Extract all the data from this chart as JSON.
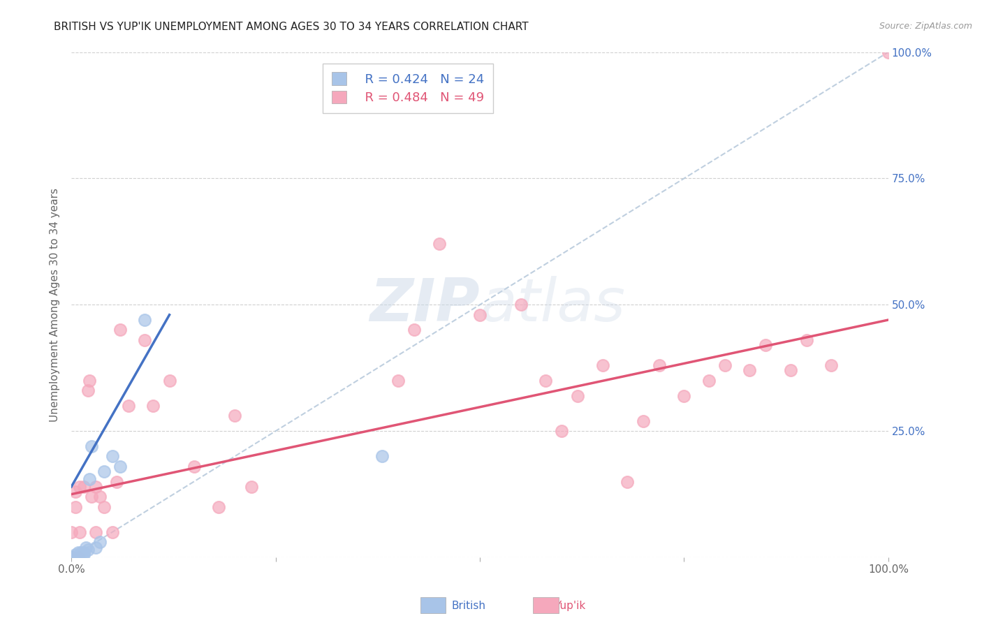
{
  "title": "BRITISH VS YUP'IK UNEMPLOYMENT AMONG AGES 30 TO 34 YEARS CORRELATION CHART",
  "source": "Source: ZipAtlas.com",
  "ylabel": "Unemployment Among Ages 30 to 34 years",
  "xlim": [
    0,
    1.0
  ],
  "ylim": [
    0,
    1.0
  ],
  "xtick_positions": [
    0.0,
    0.25,
    0.5,
    0.75,
    1.0
  ],
  "xticklabels": [
    "0.0%",
    "",
    "",
    "",
    "100.0%"
  ],
  "ytick_labels_right": [
    "100.0%",
    "75.0%",
    "50.0%",
    "25.0%",
    ""
  ],
  "ytick_positions_right": [
    1.0,
    0.75,
    0.5,
    0.25,
    0.0
  ],
  "legend_r_british": "R = 0.424",
  "legend_n_british": "N = 24",
  "legend_r_yupik": "R = 0.484",
  "legend_n_yupik": "N = 49",
  "british_color": "#a8c4e8",
  "yupik_color": "#f5a8bc",
  "trendline_british_color": "#4472c4",
  "trendline_yupik_color": "#e05575",
  "ref_line_color": "#b0c4d8",
  "watermark_color": "#ccd9e8",
  "background_color": "#ffffff",
  "grid_color": "#d0d0d0",
  "british_x": [
    0.0,
    0.0,
    0.0,
    0.0,
    0.0,
    0.005,
    0.005,
    0.008,
    0.01,
    0.01,
    0.012,
    0.015,
    0.015,
    0.018,
    0.02,
    0.022,
    0.025,
    0.03,
    0.035,
    0.04,
    0.05,
    0.06,
    0.09,
    0.38
  ],
  "british_y": [
    0.0,
    0.0,
    0.0,
    0.0,
    0.0,
    0.0,
    0.005,
    0.01,
    0.0,
    0.005,
    0.01,
    0.005,
    0.01,
    0.02,
    0.015,
    0.155,
    0.22,
    0.02,
    0.03,
    0.17,
    0.2,
    0.18,
    0.47,
    0.2
  ],
  "yupik_x": [
    0.0,
    0.0,
    0.0,
    0.0,
    0.005,
    0.005,
    0.008,
    0.01,
    0.01,
    0.015,
    0.02,
    0.022,
    0.025,
    0.03,
    0.03,
    0.035,
    0.04,
    0.05,
    0.055,
    0.06,
    0.07,
    0.09,
    0.1,
    0.12,
    0.15,
    0.18,
    0.2,
    0.22,
    0.4,
    0.42,
    0.45,
    0.5,
    0.55,
    0.58,
    0.6,
    0.62,
    0.65,
    0.68,
    0.7,
    0.72,
    0.75,
    0.78,
    0.8,
    0.83,
    0.85,
    0.88,
    0.9,
    0.93,
    1.0
  ],
  "yupik_y": [
    0.0,
    0.0,
    0.0,
    0.05,
    0.1,
    0.13,
    0.0,
    0.05,
    0.14,
    0.14,
    0.33,
    0.35,
    0.12,
    0.05,
    0.14,
    0.12,
    0.1,
    0.05,
    0.15,
    0.45,
    0.3,
    0.43,
    0.3,
    0.35,
    0.18,
    0.1,
    0.28,
    0.14,
    0.35,
    0.45,
    0.62,
    0.48,
    0.5,
    0.35,
    0.25,
    0.32,
    0.38,
    0.15,
    0.27,
    0.38,
    0.32,
    0.35,
    0.38,
    0.37,
    0.42,
    0.37,
    0.43,
    0.38,
    1.0
  ],
  "british_trend_x0": 0.0,
  "british_trend_x1": 0.12,
  "british_trend_y0": 0.14,
  "british_trend_y1": 0.48,
  "yupik_trend_x0": 0.0,
  "yupik_trend_x1": 1.0,
  "yupik_trend_y0": 0.125,
  "yupik_trend_y1": 0.47,
  "ref_line_x0": 0.0,
  "ref_line_x1": 1.0,
  "ref_line_y0": 0.0,
  "ref_line_y1": 1.0
}
